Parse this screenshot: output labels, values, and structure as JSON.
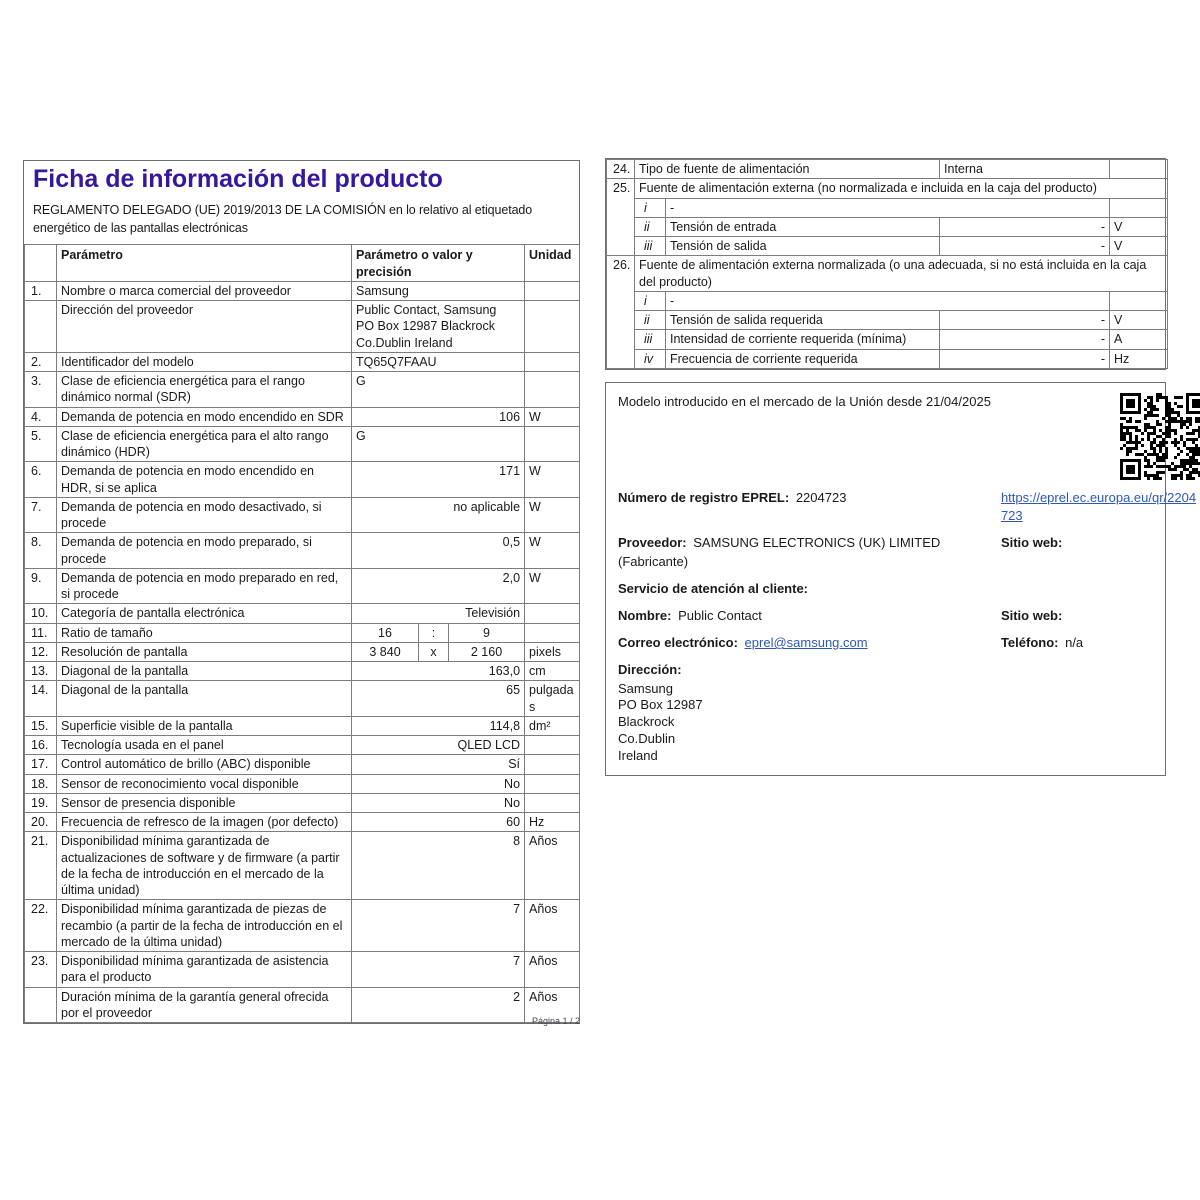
{
  "page": {
    "title": "Ficha de información del producto",
    "subtitle": "REGLAMENTO DELEGADO (UE) 2019/2013 DE LA COMISIÓN en lo relativo al etiquetado energético de las pantallas electrónicas",
    "footer": "Página 1 / 2"
  },
  "colors": {
    "title_accent": "#35189b",
    "link": "#2e58b8",
    "border": "#7d7d7d",
    "text": "#1a1a1a"
  },
  "icons": {
    "qr_code": "qr-code"
  },
  "left_table": {
    "headers": [
      "Parámetro",
      "Parámetro o valor y precisión",
      "Unidad"
    ],
    "rows": [
      {
        "num": "1.",
        "label": "Nombre o marca comercial del proveedor",
        "value": "Samsung",
        "align": "left",
        "unit": ""
      },
      {
        "num": "",
        "label": "Dirección del proveedor",
        "value": "Public Contact, Samsung\nPO Box 12987 Blackrock\nCo.Dublin Ireland",
        "align": "left",
        "unit": ""
      },
      {
        "num": "2.",
        "label": "Identificador del modelo",
        "value": "TQ65Q7FAAU",
        "align": "left",
        "unit": ""
      },
      {
        "num": "3.",
        "label": "Clase de eficiencia energética para el rango dinámico normal (SDR)",
        "value": "G",
        "align": "left",
        "unit": ""
      },
      {
        "num": "4.",
        "label": "Demanda de potencia en modo encendido en SDR",
        "value": "106",
        "align": "right",
        "unit": "W"
      },
      {
        "num": "5.",
        "label": "Clase de eficiencia energética para el alto rango dinámico (HDR)",
        "value": "G",
        "align": "left",
        "unit": ""
      },
      {
        "num": "6.",
        "label": "Demanda de potencia en modo encendido en HDR, si se aplica",
        "value": "171",
        "align": "right",
        "unit": "W"
      },
      {
        "num": "7.",
        "label": "Demanda de potencia en modo desactivado, si procede",
        "value": "no aplicable",
        "align": "right",
        "unit": "W"
      },
      {
        "num": "8.",
        "label": "Demanda de potencia en modo preparado, si procede",
        "value": "0,5",
        "align": "right",
        "unit": "W"
      },
      {
        "num": "9.",
        "label": "Demanda de potencia en modo preparado en red, si procede",
        "value": "2,0",
        "align": "right",
        "unit": "W"
      },
      {
        "num": "10.",
        "label": "Categoría de pantalla electrónica",
        "value": "Televisión",
        "align": "right",
        "unit": ""
      },
      {
        "num": "11.",
        "label": "Ratio de tamaño",
        "value_parts": [
          "16",
          ":",
          "9"
        ],
        "unit": ""
      },
      {
        "num": "12.",
        "label": "Resolución de pantalla",
        "value_parts": [
          "3 840",
          "x",
          "2 160"
        ],
        "unit": "pixels"
      },
      {
        "num": "13.",
        "label": "Diagonal de la pantalla",
        "value": "163,0",
        "align": "right",
        "unit": "cm"
      },
      {
        "num": "14.",
        "label": "Diagonal de la pantalla",
        "value": "65",
        "align": "right",
        "unit": "pulgadas"
      },
      {
        "num": "15.",
        "label": "Superficie visible de la pantalla",
        "value": "114,8",
        "align": "right",
        "unit": "dm²"
      },
      {
        "num": "16.",
        "label": "Tecnología usada en el panel",
        "value": "QLED LCD",
        "align": "right",
        "unit": ""
      },
      {
        "num": "17.",
        "label": "Control automático de brillo (ABC) disponible",
        "value": "Sí",
        "align": "right",
        "unit": ""
      },
      {
        "num": "18.",
        "label": "Sensor de reconocimiento vocal disponible",
        "value": "No",
        "align": "right",
        "unit": ""
      },
      {
        "num": "19.",
        "label": "Sensor de presencia disponible",
        "value": "No",
        "align": "right",
        "unit": ""
      },
      {
        "num": "20.",
        "label": "Frecuencia de refresco de la imagen (por defecto)",
        "value": "60",
        "align": "right",
        "unit": "Hz"
      },
      {
        "num": "21.",
        "label": "Disponibilidad mínima garantizada de actualizaciones de software y de firmware (a partir de la fecha de introducción en el mercado de la última unidad)",
        "value": "8",
        "align": "right",
        "unit": "Años"
      },
      {
        "num": "22.",
        "label": "Disponibilidad mínima garantizada de piezas de recambio (a partir de la fecha de introducción en el mercado de la última unidad)",
        "value": "7",
        "align": "right",
        "unit": "Años"
      },
      {
        "num": "23.",
        "label": "Disponibilidad mínima garantizada de asistencia para el producto",
        "value": "7",
        "align": "right",
        "unit": "Años"
      },
      {
        "num": "",
        "label": "Duración mínima de la garantía general ofrecida por el proveedor",
        "value": "2",
        "align": "right",
        "unit": "Años"
      }
    ]
  },
  "right_table": {
    "rows": [
      {
        "type": "simple",
        "num": "24.",
        "label": "Tipo de fuente de alimentación",
        "value": "Interna",
        "align": "left",
        "unit": ""
      },
      {
        "type": "group",
        "num": "25.",
        "label": "Fuente de alimentación externa (no normalizada e incluida en la caja del producto)",
        "subrows": [
          {
            "num": "i",
            "label": "-",
            "value": null,
            "unit": ""
          },
          {
            "num": "ii",
            "label": "Tensión de entrada",
            "value": "-",
            "unit": "V"
          },
          {
            "num": "iii",
            "label": "Tensión de salida",
            "value": "-",
            "unit": "V"
          }
        ]
      },
      {
        "type": "group",
        "num": "26.",
        "label": "Fuente de alimentación externa normalizada (o una adecuada, si no está incluida en la caja del producto)",
        "subrows": [
          {
            "num": "i",
            "label": "-",
            "value": null,
            "unit": ""
          },
          {
            "num": "ii",
            "label": "Tensión de salida requerida",
            "value": "-",
            "unit": "V"
          },
          {
            "num": "iii",
            "label": "Intensidad de corriente requerida (mínima)",
            "value": "-",
            "unit": "A"
          },
          {
            "num": "iv",
            "label": "Frecuencia de corriente requerida",
            "value": "-",
            "unit": "Hz"
          }
        ]
      }
    ]
  },
  "info_box": {
    "market_line": "Modelo introducido en el mercado de la Unión desde 21/04/2025",
    "eprel_label": "Número de registro EPREL:",
    "eprel_value": "2204723",
    "eprel_link": "https://eprel.ec.europa.eu/qr/2204723",
    "proveedor_label": "Proveedor:",
    "proveedor_value": "SAMSUNG ELECTRONICS (UK) LIMITED (Fabricante)",
    "sitio_web_label": "Sitio web:",
    "servicio_label": "Servicio de atención al cliente:",
    "nombre_label": "Nombre:",
    "nombre_value": "Public Contact",
    "sitio_web2_label": "Sitio web:",
    "correo_label": "Correo electrónico:",
    "correo_value": "eprel@samsung.com",
    "telefono_label": "Teléfono:",
    "telefono_value": "n/a",
    "direccion_label": "Dirección:",
    "direccion_lines": [
      "Samsung",
      "PO Box 12987",
      "Blackrock",
      "Co.Dublin",
      "Ireland"
    ]
  }
}
